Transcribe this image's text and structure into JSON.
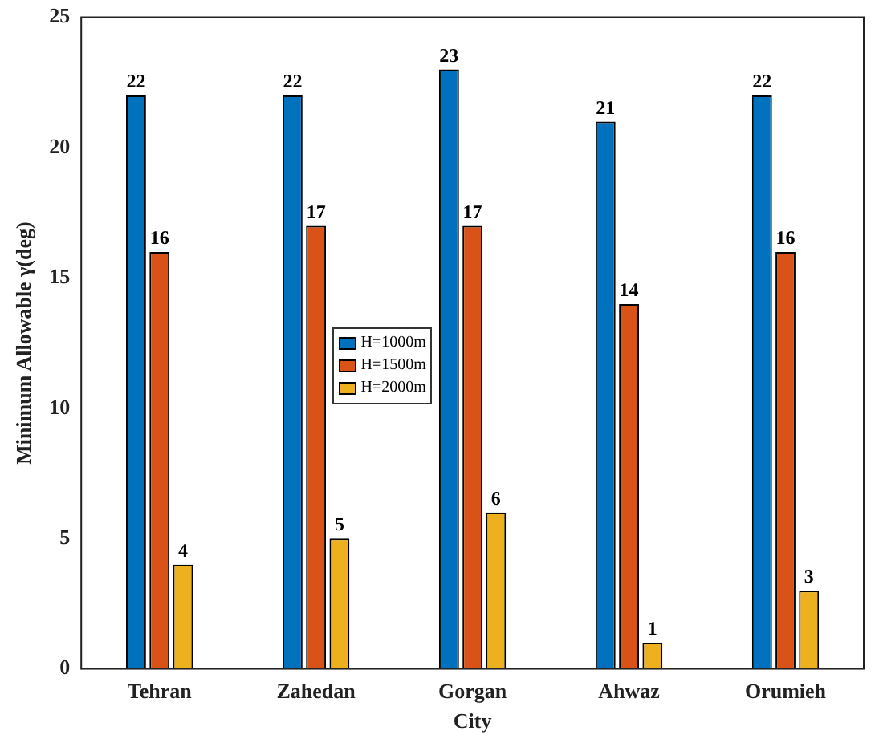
{
  "chart_data": {
    "type": "bar",
    "xlabel": "City",
    "ylabel": "Minimum Allowable γ(deg)",
    "categories": [
      "Tehran",
      "Zahedan",
      "Gorgan",
      "Ahwaz",
      "Orumieh"
    ],
    "series": [
      {
        "name": "H=1000m",
        "color": "#0072bd",
        "values": [
          22,
          22,
          23,
          21,
          22
        ]
      },
      {
        "name": "H=1500m",
        "color": "#d95319",
        "values": [
          16,
          17,
          17,
          14,
          16
        ]
      },
      {
        "name": "H=2000m",
        "color": "#edb120",
        "values": [
          4,
          5,
          6,
          1,
          3
        ]
      }
    ],
    "ylim": [
      0,
      25
    ],
    "yticks": [
      0,
      5,
      10,
      15,
      20,
      25
    ],
    "grid": false,
    "legend": "center",
    "data_labels": true
  }
}
